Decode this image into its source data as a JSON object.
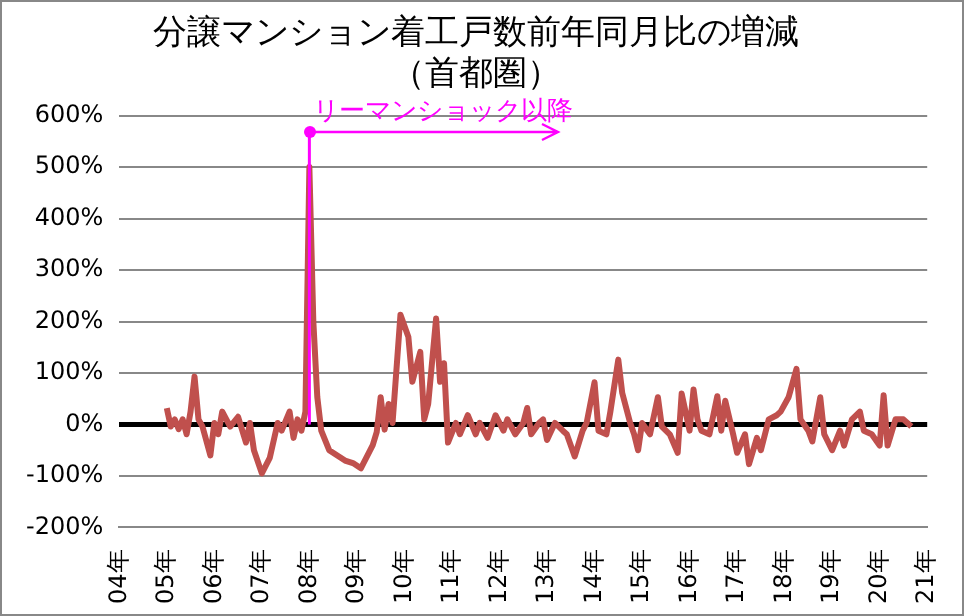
{
  "chart_data": {
    "type": "line",
    "title": "分譲マンション着工戸数前年同月比の増減",
    "subtitle": "（首都圏）",
    "x": [
      "2005-01",
      "2005-02",
      "2005-03",
      "2005-04",
      "2005-05",
      "2005-06",
      "2005-07",
      "2005-08",
      "2005-09",
      "2005-10",
      "2005-12",
      "2006-01",
      "2006-02",
      "2006-03",
      "2006-05",
      "2006-07",
      "2006-09",
      "2006-10",
      "2006-11",
      "2007-01",
      "2007-03",
      "2007-05",
      "2007-06",
      "2007-08",
      "2007-09",
      "2007-10",
      "2007-11",
      "2007-12",
      "2008-01",
      "2008-02",
      "2008-03",
      "2008-04",
      "2008-06",
      "2008-10",
      "2008-12",
      "2009-02",
      "2009-05",
      "2009-06",
      "2009-07",
      "2009-08",
      "2009-09",
      "2009-10",
      "2009-12",
      "2010-02",
      "2010-03",
      "2010-05",
      "2010-06",
      "2010-07",
      "2010-09",
      "2010-10",
      "2010-11",
      "2010-12",
      "2011-02",
      "2011-03",
      "2011-05",
      "2011-07",
      "2011-08",
      "2011-10",
      "2011-12",
      "2012-02",
      "2012-03",
      "2012-05",
      "2012-07",
      "2012-08",
      "2012-09",
      "2012-11",
      "2012-12",
      "2013-01",
      "2013-03",
      "2013-05",
      "2013-06",
      "2013-08",
      "2013-10",
      "2013-11",
      "2014-01",
      "2014-02",
      "2014-04",
      "2014-05",
      "2014-07",
      "2014-08",
      "2014-10",
      "2014-11",
      "2014-12",
      "2015-01",
      "2015-03",
      "2015-05",
      "2015-06",
      "2015-08",
      "2015-10",
      "2015-11",
      "2016-01",
      "2016-02",
      "2016-03",
      "2016-04",
      "2016-06",
      "2016-08",
      "2016-09",
      "2016-10",
      "2016-12",
      "2017-01",
      "2017-03",
      "2017-04",
      "2017-06",
      "2017-07",
      "2017-09",
      "2017-11",
      "2017-12",
      "2018-02",
      "2018-04",
      "2018-05",
      "2018-07",
      "2018-08",
      "2018-10",
      "2018-11",
      "2019-01",
      "2019-03",
      "2019-04",
      "2019-06",
      "2019-08",
      "2019-09",
      "2019-11",
      "2020-01",
      "2020-02",
      "2020-03",
      "2020-05",
      "2020-07",
      "2020-09"
    ],
    "series": [
      {
        "color": "#c0504d",
        "values": [
          32,
          -4,
          10,
          -9,
          10,
          -19,
          25,
          93,
          10,
          -4,
          -60,
          3,
          -19,
          25,
          -4,
          15,
          -35,
          3,
          -50,
          -95,
          -65,
          3,
          -12,
          25,
          -26,
          10,
          -12,
          25,
          500,
          200,
          53,
          -12,
          -50,
          -70,
          -75,
          -85,
          -40,
          -15,
          53,
          -10,
          40,
          3,
          213,
          170,
          83,
          141,
          10,
          40,
          206,
          83,
          119,
          -35,
          3,
          -19,
          18,
          -19,
          3,
          -26,
          18,
          -12,
          10,
          -19,
          3,
          32,
          -19,
          3,
          10,
          -30,
          3,
          -12,
          -19,
          -62,
          -12,
          3,
          82,
          -12,
          -19,
          25,
          126,
          61,
          3,
          -19,
          -50,
          3,
          -19,
          53,
          -4,
          -19,
          -55,
          60,
          -12,
          68,
          10,
          -12,
          -19,
          55,
          -12,
          46,
          -19,
          -55,
          -19,
          -77,
          -26,
          -50,
          10,
          18,
          25,
          53,
          108,
          10,
          -12,
          -33,
          53,
          -19,
          -50,
          -12,
          -41,
          10,
          25,
          -12,
          -19,
          -41,
          57,
          -41,
          10,
          10,
          -4
        ]
      }
    ],
    "xlim": [
      "2004-01",
      "2021-01"
    ],
    "xticks": [
      {
        "value": "2004-01",
        "label": "04年"
      },
      {
        "value": "2005-01",
        "label": "05年"
      },
      {
        "value": "2006-01",
        "label": "06年"
      },
      {
        "value": "2007-01",
        "label": "07年"
      },
      {
        "value": "2008-01",
        "label": "08年"
      },
      {
        "value": "2009-01",
        "label": "09年"
      },
      {
        "value": "2010-01",
        "label": "10年"
      },
      {
        "value": "2011-01",
        "label": "11年"
      },
      {
        "value": "2012-01",
        "label": "12年"
      },
      {
        "value": "2013-01",
        "label": "13年"
      },
      {
        "value": "2014-01",
        "label": "14年"
      },
      {
        "value": "2015-01",
        "label": "15年"
      },
      {
        "value": "2016-01",
        "label": "16年"
      },
      {
        "value": "2017-01",
        "label": "17年"
      },
      {
        "value": "2018-01",
        "label": "18年"
      },
      {
        "value": "2019-01",
        "label": "19年"
      },
      {
        "value": "2020-01",
        "label": "20年"
      },
      {
        "value": "2021-01",
        "label": "21年"
      }
    ],
    "ylim": [
      -200,
      600
    ],
    "yticks": [
      {
        "value": -200,
        "label": "-200%"
      },
      {
        "value": -100,
        "label": "-100%"
      },
      {
        "value": 0,
        "label": "0%"
      },
      {
        "value": 100,
        "label": "100%"
      },
      {
        "value": 200,
        "label": "200%"
      },
      {
        "value": 300,
        "label": "300%"
      },
      {
        "value": 400,
        "label": "400%"
      },
      {
        "value": 500,
        "label": "500%"
      },
      {
        "value": 600,
        "label": "600%"
      }
    ],
    "grid": "y",
    "legend": false,
    "marker": "none",
    "line_style": "solid",
    "ref_lines": [
      {
        "axis": "x",
        "value": "2008-01",
        "label": "リーマンショック以降",
        "color": "#ff00ff"
      }
    ]
  }
}
